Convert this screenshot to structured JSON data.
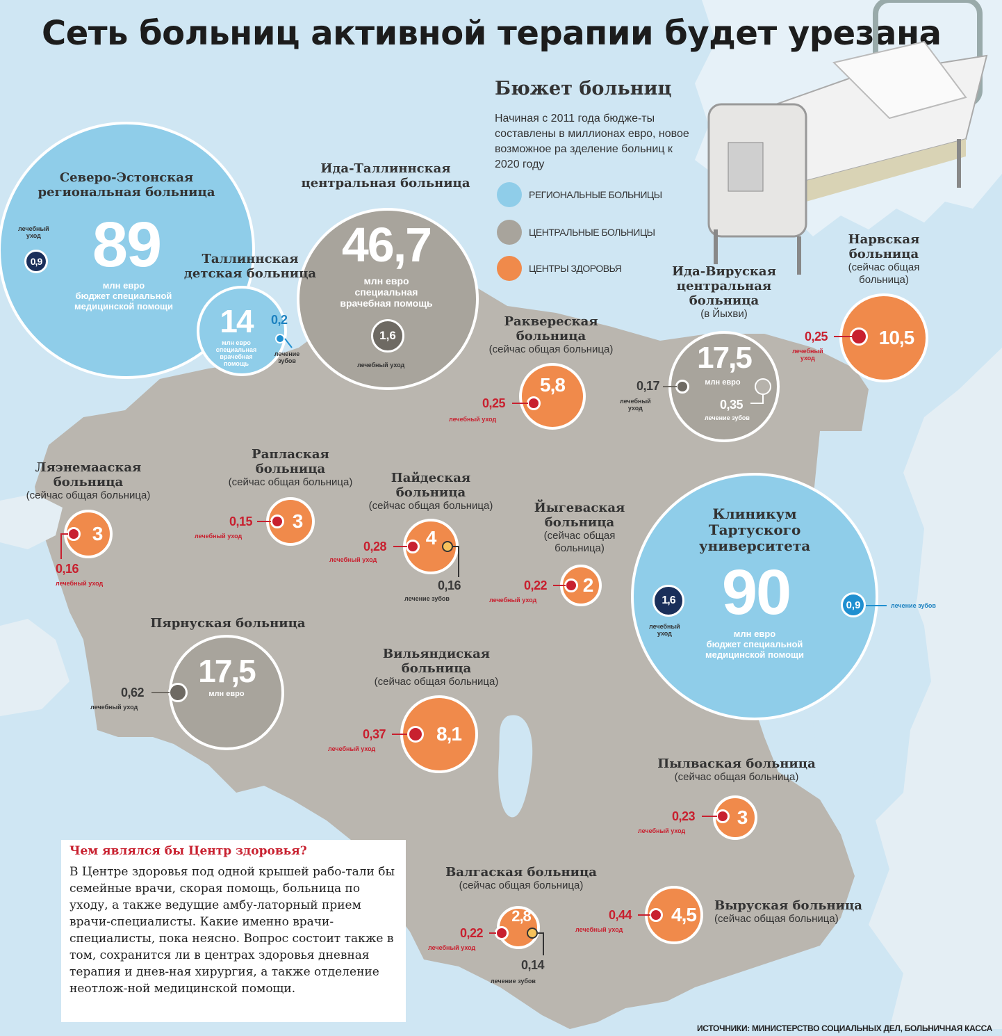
{
  "title": "Сеть больниц активной терапии будет урезана",
  "legend": {
    "title": "Бюжет больниц",
    "description": "Начиная с 2011 года бюдже-ты составлены в миллионах евро, новое возможное ра зделение больниц к 2020 году",
    "items": [
      {
        "label": "РЕГИОНАЛЬНЫЕ БОЛЬНИЦЫ",
        "color": "#8fcde9",
        "icon": "light-blue-circle"
      },
      {
        "label": "ЦЕНТРАЛЬНЫЕ БОЛЬНИЦЫ",
        "color": "#a8a49c",
        "icon": "grey-circle"
      },
      {
        "label": "ЦЕНТРЫ ЗДОРОВЬЯ",
        "color": "#f08a4b",
        "icon": "orange-circle"
      }
    ]
  },
  "hospitals": {
    "north_estonia": {
      "name_line1": "Северо-Эстонская",
      "name_line2": "региональная больница",
      "value": "89",
      "caption_line1": "млн евро",
      "caption_line2": "бюджет специальной",
      "caption_line3": "медицинской помощи",
      "care_value": "0,9",
      "care_label_line1": "лечебный",
      "care_label_line2": "уход"
    },
    "tallinn_children": {
      "name_line1": "Таллиннская",
      "name_line2": "детская больница",
      "value": "14",
      "caption": "млн евро специальная врачебная помощь",
      "dental_value": "0,2",
      "dental_label": "лечение зубов"
    },
    "ida_tallinn": {
      "name_line1": "Ида-Таллиннская",
      "name_line2": "центральная больница",
      "value": "46,7",
      "caption_line1": "млн евро",
      "caption_line2": "специальная",
      "caption_line3": "врачебная помощь",
      "care_value": "1,6",
      "care_label": "лечебный уход"
    },
    "rakvere": {
      "name_line1": "Раквереская",
      "name_line2": "больница",
      "status": "(сейчас общая больница)",
      "value": "5,8",
      "care_value": "0,25",
      "care_label": "лечебный уход"
    },
    "ida_viru": {
      "name_line1": "Ида-Вируская",
      "name_line2": "центральная",
      "name_line3": "больница",
      "location": "(в Йыхви)",
      "value": "17,5",
      "caption": "млн евро",
      "care_value": "0,17",
      "care_label_line1": "лечебный",
      "care_label_line2": "уход",
      "dental_value": "0,35",
      "dental_label": "лечение зубов"
    },
    "narva": {
      "name_line1": "Нарвская",
      "name_line2": "больница",
      "status_line1": "(сейчас общая",
      "status_line2": "больница)",
      "value": "10,5",
      "care_value": "0,25",
      "care_label_line1": "лечебный",
      "care_label_line2": "уход"
    },
    "laanemaa": {
      "name_line1": "Ляэнемааская",
      "name_line2": "больница",
      "status": "(сейчас общая больница)",
      "value": "3",
      "care_value": "0,16",
      "care_label": "лечебный уход"
    },
    "rapla": {
      "name_line1": "Рапласкaя",
      "name_line2": "больница",
      "status": "(сейчас общая больница)",
      "value": "3",
      "care_value": "0,15",
      "care_label": "лечебный уход"
    },
    "paide": {
      "name_line1": "Пайдеская",
      "name_line2": "больница",
      "status": "(сейчас общая больница)",
      "value": "4",
      "care_value": "0,28",
      "care_label": "лечебный уход",
      "dental_value": "0,16",
      "dental_label": "лечение зубов"
    },
    "jogeva": {
      "name_line1": "Йыгеваская",
      "name_line2": "больница",
      "status_line1": "(сейчас общая",
      "status_line2": "больница)",
      "value": "2",
      "care_value": "0,22",
      "care_label": "лечебный уход"
    },
    "tartu": {
      "name_line1": "Клиникум",
      "name_line2": "Тартуского",
      "name_line3": "университета",
      "value": "90",
      "caption_line1": "млн евро",
      "caption_line2": "бюджет специальной",
      "caption_line3": "медицинской помощи",
      "care_value": "1,6",
      "care_label_line1": "лечебный",
      "care_label_line2": "уход",
      "dental_value": "0,9",
      "dental_label": "лечение зубов"
    },
    "parnu": {
      "name": "Пярнуская больница",
      "value": "17,5",
      "caption": "млн евро",
      "care_value": "0,62",
      "care_label": "лечебный уход"
    },
    "viljandi": {
      "name_line1": "Вильяндиская",
      "name_line2": "больница",
      "status": "(сейчас общая больница)",
      "value": "8,1",
      "care_value": "0,37",
      "care_label": "лечебный уход"
    },
    "polva": {
      "name": "Пылваская больница",
      "status": "(сейчас общая больница)",
      "value": "3",
      "care_value": "0,23",
      "care_label": "лечебный уход"
    },
    "valga": {
      "name": "Валгаская больница",
      "status": "(сейчас общая больница)",
      "value": "2,8",
      "care_value": "0,22",
      "care_label": "лечебный уход",
      "dental_value": "0,14",
      "dental_label": "лечение зубов"
    },
    "voru": {
      "name": "Выруская больница",
      "status": "(сейчас общая больница)",
      "value": "4,5",
      "care_value": "0,44",
      "care_label": "лечебный уход"
    }
  },
  "info_box": {
    "title": "Чем являлся бы Центр здоровья?",
    "text": "В Центре здоровья под одной крышей рабо-тали бы семейные врачи, скорая помощь, больница по уходу, а также ведущие амбу-латорный прием врачи-специалисты. Какие именно врачи-специалисты, пока неясно. Вопрос состоит также в том, сохранится ли в центрах здоровья дневная терапия и днев-ная хирургия, а также отделение неотлож-ной медицинской помощи."
  },
  "sources": "ИСТОЧНИКИ: МИНИСТЕРСТВО СОЦИАЛЬНЫХ ДЕЛ, БОЛЬНИЧНАЯ КАССА",
  "colors": {
    "regional": "#8fcde9",
    "central": "#a8a49c",
    "health_center": "#f08a4b",
    "care_dot": "#c8202f",
    "sea": "#cfe6f3",
    "land": "#bab6af"
  }
}
